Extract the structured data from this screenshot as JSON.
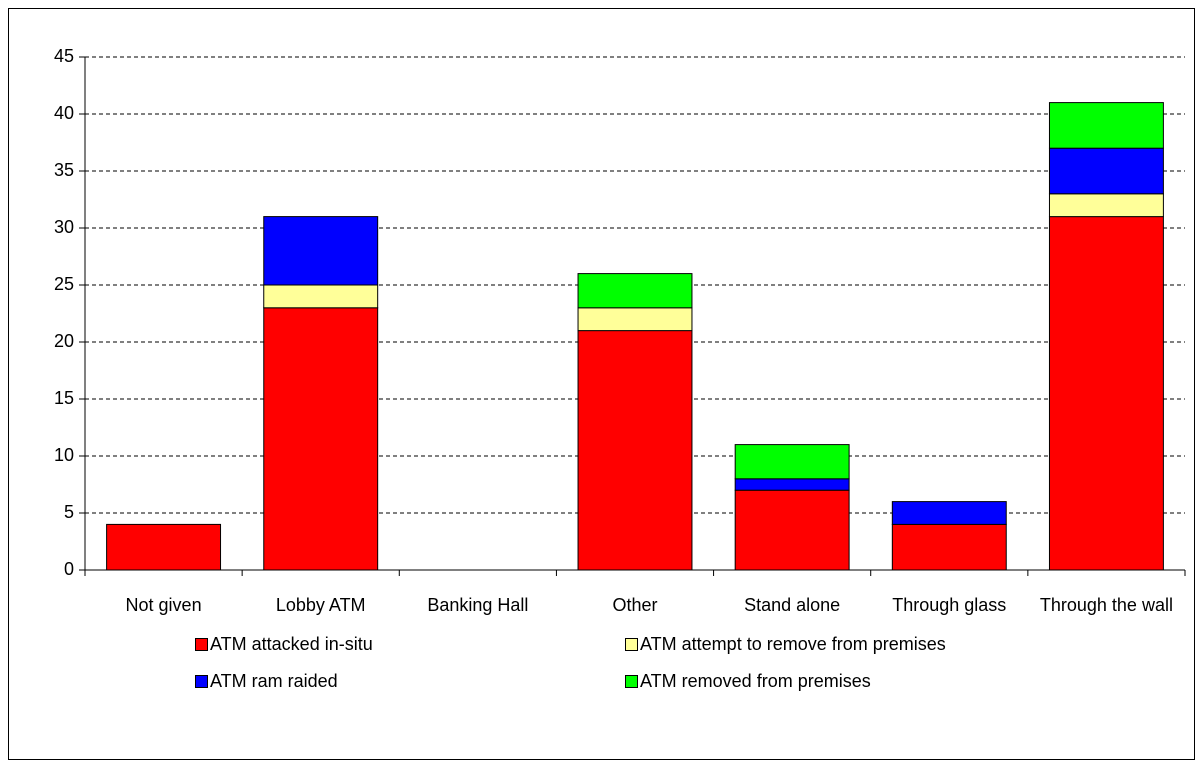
{
  "chart_data": {
    "type": "stacked_bar",
    "categories": [
      "Not given",
      "Lobby ATM",
      "Banking Hall",
      "Other",
      "Stand alone",
      "Through glass",
      "Through the wall"
    ],
    "series": [
      {
        "name": "ATM attacked in-situ",
        "color": "#ff0000",
        "values": [
          4,
          23,
          0,
          21,
          7,
          4,
          31
        ]
      },
      {
        "name": "ATM attempt to remove from premises",
        "color": "#ffff99",
        "values": [
          0,
          2,
          0,
          2,
          0,
          0,
          2
        ]
      },
      {
        "name": "ATM ram raided",
        "color": "#0000ff",
        "values": [
          0,
          6,
          0,
          0,
          1,
          2,
          4
        ]
      },
      {
        "name": "ATM removed from premises",
        "color": "#00ff00",
        "values": [
          0,
          0,
          0,
          3,
          3,
          0,
          4
        ]
      }
    ],
    "ylim": [
      0,
      45
    ],
    "yticks": [
      0,
      5,
      10,
      15,
      20,
      25,
      30,
      35,
      40,
      45
    ],
    "grid": true
  }
}
